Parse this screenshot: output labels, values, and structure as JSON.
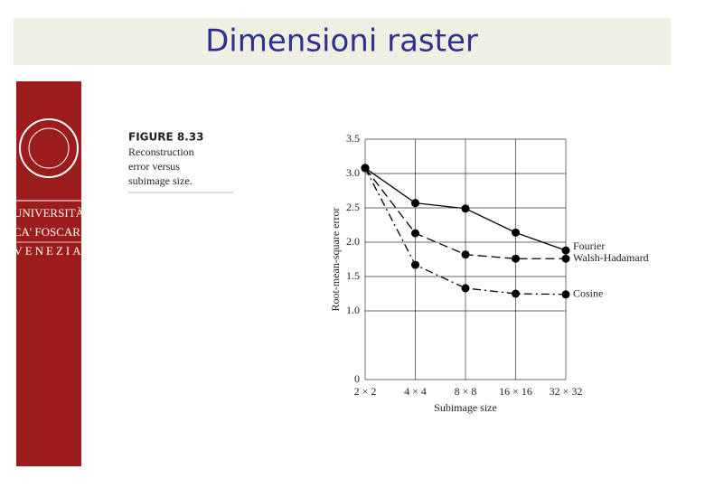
{
  "slide": {
    "title": "Dimensioni raster"
  },
  "logo": {
    "lines": [
      "UNIVERSITÀ",
      "CA' FOSCARI",
      "VENEZIA"
    ]
  },
  "figure": {
    "label": "FIGURE 8.33",
    "caption": [
      "Reconstruction",
      "error versus",
      "subimage size."
    ]
  },
  "chart_data": {
    "type": "line",
    "x_label": "Subimage size",
    "y_label": "Root-mean-square error",
    "categories": [
      "2 × 2",
      "4 × 4",
      "8 × 8",
      "16 × 16",
      "32 × 32"
    ],
    "series": [
      {
        "name": "Fourier",
        "color": "#000000",
        "dash": "solid",
        "values": [
          3.08,
          2.57,
          2.49,
          2.14,
          1.88
        ]
      },
      {
        "name": "Walsh-Hadamard",
        "color": "#000000",
        "dash": "dashed",
        "values": [
          3.08,
          2.13,
          1.82,
          1.76,
          1.76
        ]
      },
      {
        "name": "Cosine",
        "color": "#000000",
        "dash": "dashdot",
        "values": [
          3.08,
          1.67,
          1.33,
          1.25,
          1.24
        ]
      }
    ],
    "ylim": [
      0,
      3.5
    ],
    "yticks": [
      0,
      {
        "value": 1,
        "label": "1.0"
      },
      {
        "value": 1.5,
        "label": "1.5"
      },
      {
        "value": 2,
        "label": "2.0"
      },
      {
        "value": 2.5,
        "label": "2.5"
      },
      {
        "value": 3,
        "label": "3.0"
      },
      3.5
    ],
    "grid": true
  }
}
